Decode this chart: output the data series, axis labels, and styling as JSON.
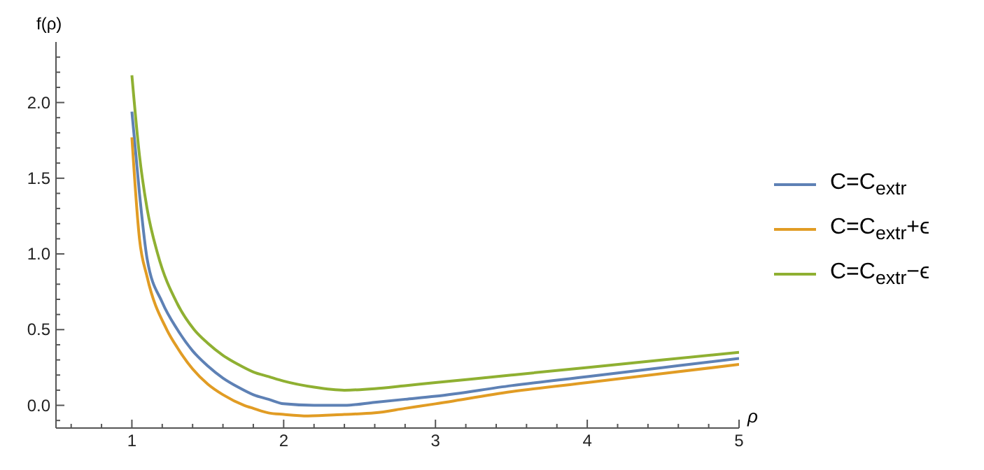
{
  "chart_data": {
    "type": "line",
    "xlabel": "ρ",
    "ylabel": "f(ρ)",
    "legend": "right",
    "marker": "none",
    "line_style": "solid",
    "xlim": [
      0.5,
      5
    ],
    "ylim": [
      -0.15,
      2.4
    ],
    "xticks": [
      {
        "value": 0.6,
        "label": null
      },
      {
        "value": 0.8,
        "label": null
      },
      1,
      {
        "value": 1.2,
        "label": null
      },
      {
        "value": 1.4,
        "label": null
      },
      {
        "value": 1.6,
        "label": null
      },
      {
        "value": 1.8,
        "label": null
      },
      2,
      {
        "value": 2.2,
        "label": null
      },
      {
        "value": 2.4,
        "label": null
      },
      {
        "value": 2.6,
        "label": null
      },
      {
        "value": 2.8,
        "label": null
      },
      3,
      {
        "value": 3.2,
        "label": null
      },
      {
        "value": 3.4,
        "label": null
      },
      {
        "value": 3.6,
        "label": null
      },
      {
        "value": 3.8,
        "label": null
      },
      4,
      {
        "value": 4.2,
        "label": null
      },
      {
        "value": 4.4,
        "label": null
      },
      {
        "value": 4.6,
        "label": null
      },
      {
        "value": 4.8,
        "label": null
      },
      5
    ],
    "yticks": [
      {
        "value": -0.1,
        "label": null
      },
      {
        "value": 0,
        "label": "0.0"
      },
      {
        "value": 0.1,
        "label": null
      },
      {
        "value": 0.2,
        "label": null
      },
      {
        "value": 0.3,
        "label": null
      },
      {
        "value": 0.4,
        "label": null
      },
      {
        "value": 0.5,
        "label": "0.5"
      },
      {
        "value": 0.6,
        "label": null
      },
      {
        "value": 0.7,
        "label": null
      },
      {
        "value": 0.8,
        "label": null
      },
      {
        "value": 0.9,
        "label": null
      },
      {
        "value": 1,
        "label": "1.0"
      },
      {
        "value": 1.1,
        "label": null
      },
      {
        "value": 1.2,
        "label": null
      },
      {
        "value": 1.3,
        "label": null
      },
      {
        "value": 1.4,
        "label": null
      },
      {
        "value": 1.5,
        "label": "1.5"
      },
      {
        "value": 1.6,
        "label": null
      },
      {
        "value": 1.7,
        "label": null
      },
      {
        "value": 1.8,
        "label": null
      },
      {
        "value": 1.9,
        "label": null
      },
      {
        "value": 2,
        "label": "2.0"
      },
      {
        "value": 2.1,
        "label": null
      },
      {
        "value": 2.2,
        "label": null
      },
      {
        "value": 2.3,
        "label": null
      }
    ],
    "series": [
      {
        "name": "C=C$_{extr}$",
        "color": "#5e81b5",
        "x": [
          1,
          1.05,
          1.1,
          1.2,
          1.3,
          1.4,
          1.5,
          1.6,
          1.7,
          1.8,
          1.9,
          2,
          2.2,
          2.4,
          2.6,
          2.8,
          3,
          3.5,
          4,
          4.5,
          5
        ],
        "values": [
          1.94,
          1.4,
          0.97,
          0.68,
          0.5,
          0.36,
          0.26,
          0.18,
          0.12,
          0.07,
          0.04,
          0.01,
          0,
          0,
          0.02,
          0.04,
          0.06,
          0.13,
          0.19,
          0.25,
          0.31
        ]
      },
      {
        "name": "C=C$_{extr}$+ϵ",
        "color": "#e19c24",
        "x": [
          1,
          1.05,
          1.1,
          1.23,
          1.3,
          1.4,
          1.5,
          1.6,
          1.74,
          1.8,
          1.9,
          2,
          2.16,
          2.4,
          2.6,
          2.8,
          3,
          3.5,
          4,
          4.5,
          5
        ],
        "values": [
          1.77,
          1.1,
          0.85,
          0.5,
          0.38,
          0.24,
          0.14,
          0.07,
          0,
          -0.02,
          -0.05,
          -0.06,
          -0.07,
          -0.06,
          -0.05,
          -0.02,
          0.01,
          0.09,
          0.15,
          0.21,
          0.27
        ]
      },
      {
        "name": "C=C$_{extr}$−ϵ",
        "color": "#8fb032",
        "x": [
          1,
          1.05,
          1.1,
          1.17,
          1.3,
          1.41,
          1.5,
          1.6,
          1.7,
          1.8,
          1.9,
          2,
          2.2,
          2.4,
          2.6,
          2.8,
          3,
          3.5,
          4,
          4.5,
          5
        ],
        "values": [
          2.18,
          1.65,
          1.3,
          1.0,
          0.67,
          0.5,
          0.41,
          0.33,
          0.27,
          0.22,
          0.19,
          0.16,
          0.12,
          0.1,
          0.11,
          0.13,
          0.15,
          0.2,
          0.25,
          0.3,
          0.35
        ]
      }
    ]
  }
}
